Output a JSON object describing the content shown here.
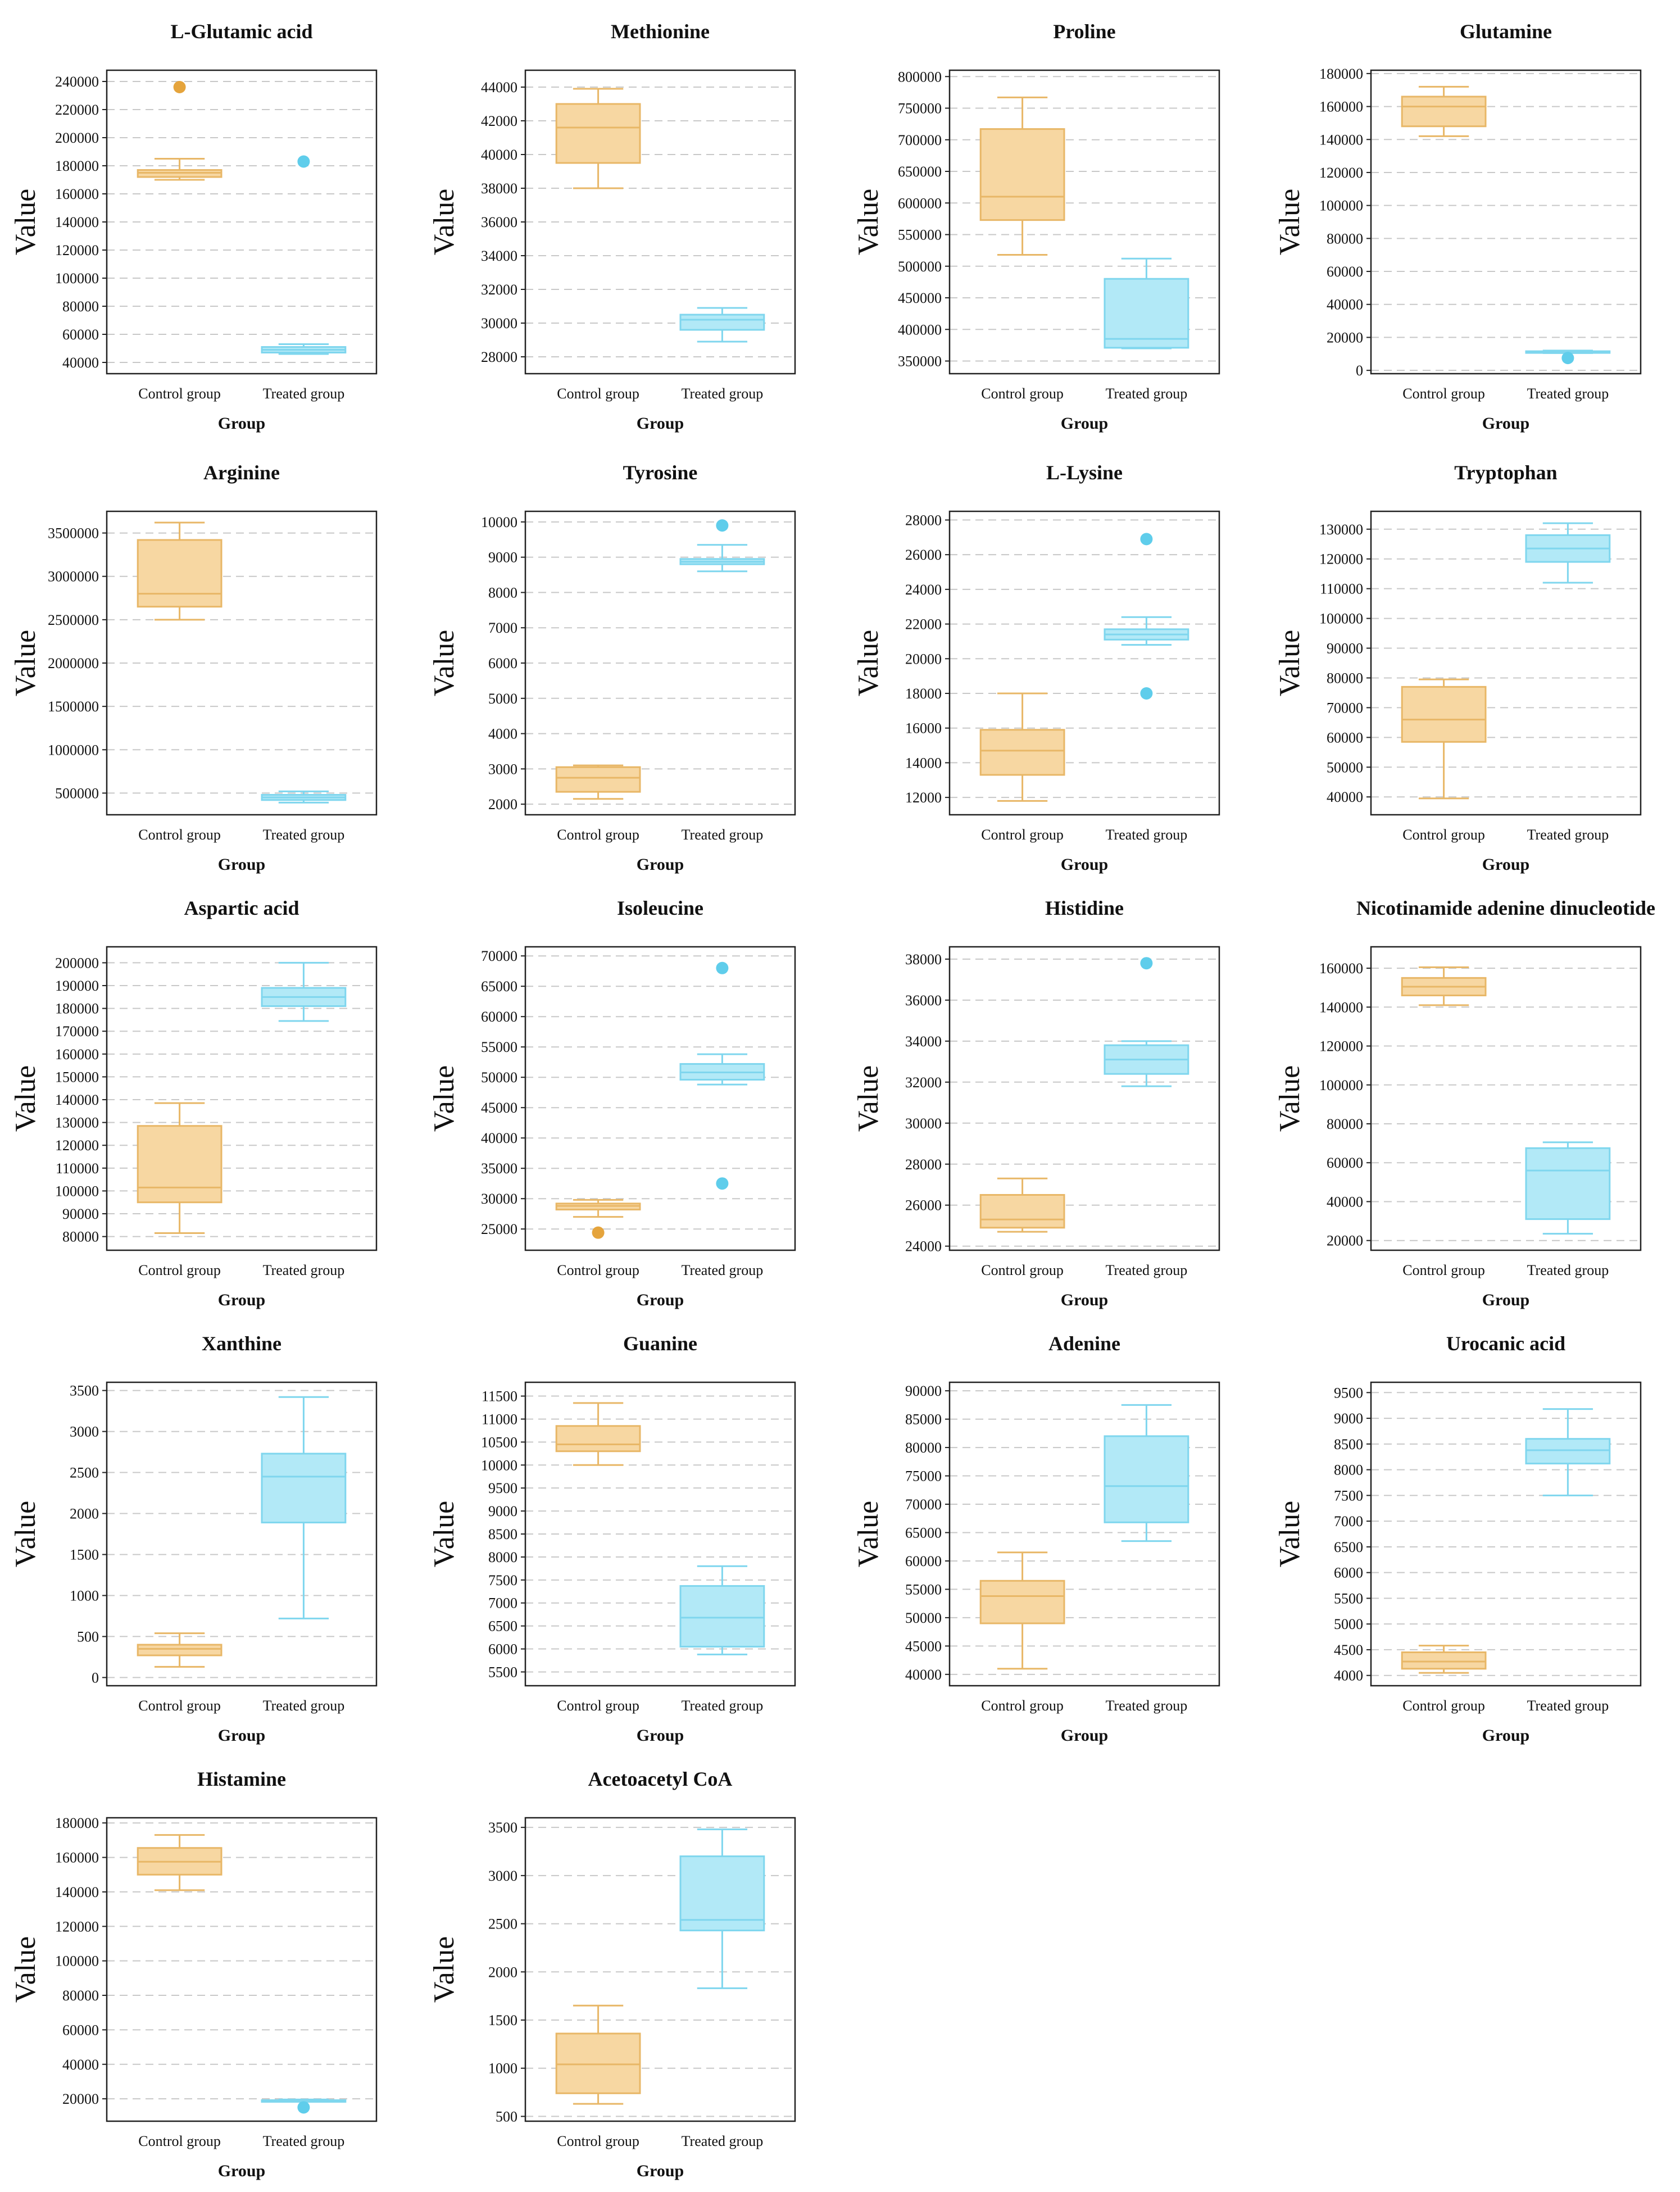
{
  "figure": {
    "colors": {
      "control_fill": "#f7d7a2",
      "control_edge": "#e8b767",
      "control_outlier": "#e5a43c",
      "treated_fill": "#b2e9f7",
      "treated_edge": "#7fd6ee",
      "treated_outlier": "#5fcdeb",
      "grid": "#c8c8c8",
      "frame": "#222222"
    }
  },
  "chart_data": [
    {
      "type": "box",
      "title": "L-Glutamic acid",
      "xlabel": "Group",
      "ylabel": "Value",
      "categories": [
        "Control group",
        "Treated group"
      ],
      "ylim": [
        32000,
        248000
      ],
      "yticks": [
        40000,
        60000,
        80000,
        100000,
        120000,
        140000,
        160000,
        180000,
        200000,
        220000,
        240000
      ],
      "ytick_labels": [
        "40000",
        "60000",
        "80000",
        "100000",
        "120000",
        "140000",
        "160000",
        "180000",
        "200000",
        "220000",
        "240000"
      ],
      "boxes": [
        {
          "whisker_low": 170000,
          "q1": 172000,
          "median": 175000,
          "q3": 177000,
          "whisker_high": 185000,
          "outliers": [
            236000
          ]
        },
        {
          "whisker_low": 46000,
          "q1": 47000,
          "median": 49000,
          "q3": 51000,
          "whisker_high": 53000,
          "outliers": [
            183000
          ]
        }
      ]
    },
    {
      "type": "box",
      "title": "Methionine",
      "xlabel": "Group",
      "ylabel": "Value",
      "categories": [
        "Control group",
        "Treated group"
      ],
      "ylim": [
        27000,
        45000
      ],
      "yticks": [
        28000,
        30000,
        32000,
        34000,
        36000,
        38000,
        40000,
        42000,
        44000
      ],
      "ytick_labels": [
        "28000",
        "30000",
        "32000",
        "34000",
        "36000",
        "38000",
        "40000",
        "42000",
        "44000"
      ],
      "boxes": [
        {
          "whisker_low": 38000,
          "q1": 39500,
          "median": 41600,
          "q3": 43000,
          "whisker_high": 43900,
          "outliers": []
        },
        {
          "whisker_low": 28900,
          "q1": 29600,
          "median": 30200,
          "q3": 30500,
          "whisker_high": 30900,
          "outliers": []
        }
      ]
    },
    {
      "type": "box",
      "title": "Proline",
      "xlabel": "Group",
      "ylabel": "Value",
      "categories": [
        "Control group",
        "Treated group"
      ],
      "ylim": [
        330000,
        810000
      ],
      "yticks": [
        350000,
        400000,
        450000,
        500000,
        550000,
        600000,
        650000,
        700000,
        750000,
        800000
      ],
      "ytick_labels": [
        "350000",
        "400000",
        "450000",
        "500000",
        "550000",
        "600000",
        "650000",
        "700000",
        "750000",
        "800000"
      ],
      "boxes": [
        {
          "whisker_low": 518000,
          "q1": 573000,
          "median": 610000,
          "q3": 717000,
          "whisker_high": 767000,
          "outliers": []
        },
        {
          "whisker_low": 370000,
          "q1": 371000,
          "median": 385000,
          "q3": 480000,
          "whisker_high": 512000,
          "outliers": []
        }
      ]
    },
    {
      "type": "box",
      "title": "Glutamine",
      "xlabel": "Group",
      "ylabel": "Value",
      "categories": [
        "Control group",
        "Treated group"
      ],
      "ylim": [
        -2000,
        182000
      ],
      "yticks": [
        0,
        20000,
        40000,
        60000,
        80000,
        100000,
        120000,
        140000,
        160000,
        180000
      ],
      "ytick_labels": [
        "0",
        "20000",
        "40000",
        "60000",
        "80000",
        "100000",
        "120000",
        "140000",
        "160000",
        "180000"
      ],
      "boxes": [
        {
          "whisker_low": 142000,
          "q1": 148000,
          "median": 160000,
          "q3": 166000,
          "whisker_high": 172000,
          "outliers": []
        },
        {
          "whisker_low": 10500,
          "q1": 10800,
          "median": 11200,
          "q3": 11600,
          "whisker_high": 12000,
          "outliers": [
            7500
          ]
        }
      ]
    },
    {
      "type": "box",
      "title": "Arginine",
      "xlabel": "Group",
      "ylabel": "Value",
      "categories": [
        "Control group",
        "Treated group"
      ],
      "ylim": [
        250000,
        3750000
      ],
      "yticks": [
        500000,
        1000000,
        1500000,
        2000000,
        2500000,
        3000000,
        3500000
      ],
      "ytick_labels": [
        "500000",
        "1000000",
        "1500000",
        "2000000",
        "2500000",
        "3000000",
        "3500000"
      ],
      "boxes": [
        {
          "whisker_low": 2500000,
          "q1": 2650000,
          "median": 2800000,
          "q3": 3420000,
          "whisker_high": 3620000,
          "outliers": []
        },
        {
          "whisker_low": 390000,
          "q1": 420000,
          "median": 450000,
          "q3": 480000,
          "whisker_high": 520000,
          "outliers": []
        }
      ]
    },
    {
      "type": "box",
      "title": "Tyrosine",
      "xlabel": "Group",
      "ylabel": "Value",
      "categories": [
        "Control group",
        "Treated group"
      ],
      "ylim": [
        1700,
        10300
      ],
      "yticks": [
        2000,
        3000,
        4000,
        5000,
        6000,
        7000,
        8000,
        9000,
        10000
      ],
      "ytick_labels": [
        "2000",
        "3000",
        "4000",
        "5000",
        "6000",
        "7000",
        "8000",
        "9000",
        "10000"
      ],
      "boxes": [
        {
          "whisker_low": 2150,
          "q1": 2350,
          "median": 2750,
          "q3": 3050,
          "whisker_high": 3100,
          "outliers": []
        },
        {
          "whisker_low": 8600,
          "q1": 8800,
          "median": 8870,
          "q3": 8950,
          "whisker_high": 9350,
          "outliers": [
            9900
          ]
        }
      ]
    },
    {
      "type": "box",
      "title": "L-Lysine",
      "xlabel": "Group",
      "ylabel": "Value",
      "categories": [
        "Control group",
        "Treated group"
      ],
      "ylim": [
        11000,
        28500
      ],
      "yticks": [
        12000,
        14000,
        16000,
        18000,
        20000,
        22000,
        24000,
        26000,
        28000
      ],
      "ytick_labels": [
        "12000",
        "14000",
        "16000",
        "18000",
        "20000",
        "22000",
        "24000",
        "26000",
        "28000"
      ],
      "boxes": [
        {
          "whisker_low": 11800,
          "q1": 13300,
          "median": 14700,
          "q3": 15900,
          "whisker_high": 18000,
          "outliers": []
        },
        {
          "whisker_low": 20800,
          "q1": 21100,
          "median": 21400,
          "q3": 21700,
          "whisker_high": 22400,
          "outliers": [
            26900,
            18000
          ]
        }
      ]
    },
    {
      "type": "box",
      "title": "Tryptophan",
      "xlabel": "Group",
      "ylabel": "Value",
      "categories": [
        "Control group",
        "Treated group"
      ],
      "ylim": [
        34000,
        136000
      ],
      "yticks": [
        40000,
        50000,
        60000,
        70000,
        80000,
        90000,
        100000,
        110000,
        120000,
        130000
      ],
      "ytick_labels": [
        "40000",
        "50000",
        "60000",
        "70000",
        "80000",
        "90000",
        "100000",
        "110000",
        "120000",
        "130000"
      ],
      "boxes": [
        {
          "whisker_low": 39500,
          "q1": 58500,
          "median": 66000,
          "q3": 77000,
          "whisker_high": 79500,
          "outliers": []
        },
        {
          "whisker_low": 112000,
          "q1": 119000,
          "median": 123500,
          "q3": 128000,
          "whisker_high": 132000,
          "outliers": []
        }
      ]
    },
    {
      "type": "box",
      "title": "Aspartic acid",
      "xlabel": "Group",
      "ylabel": "Value",
      "categories": [
        "Control group",
        "Treated group"
      ],
      "ylim": [
        74000,
        207000
      ],
      "yticks": [
        80000,
        90000,
        100000,
        110000,
        120000,
        130000,
        140000,
        150000,
        160000,
        170000,
        180000,
        190000,
        200000
      ],
      "ytick_labels": [
        "80000",
        "90000",
        "100000",
        "110000",
        "120000",
        "130000",
        "140000",
        "150000",
        "160000",
        "170000",
        "180000",
        "190000",
        "200000"
      ],
      "boxes": [
        {
          "whisker_low": 81500,
          "q1": 95000,
          "median": 101500,
          "q3": 128500,
          "whisker_high": 138500,
          "outliers": []
        },
        {
          "whisker_low": 174500,
          "q1": 181000,
          "median": 185000,
          "q3": 189000,
          "whisker_high": 200000,
          "outliers": []
        }
      ]
    },
    {
      "type": "box",
      "title": "Isoleucine",
      "xlabel": "Group",
      "ylabel": "Value",
      "categories": [
        "Control group",
        "Treated group"
      ],
      "ylim": [
        21500,
        71500
      ],
      "yticks": [
        25000,
        30000,
        35000,
        40000,
        45000,
        50000,
        55000,
        60000,
        65000,
        70000
      ],
      "ytick_labels": [
        "25000",
        "30000",
        "35000",
        "40000",
        "45000",
        "50000",
        "55000",
        "60000",
        "65000",
        "70000"
      ],
      "boxes": [
        {
          "whisker_low": 27000,
          "q1": 28200,
          "median": 28800,
          "q3": 29200,
          "whisker_high": 29800,
          "outliers": [
            24400
          ]
        },
        {
          "whisker_low": 48800,
          "q1": 49600,
          "median": 50800,
          "q3": 52200,
          "whisker_high": 53800,
          "outliers": [
            68000,
            32500
          ]
        }
      ]
    },
    {
      "type": "box",
      "title": "Histidine",
      "xlabel": "Group",
      "ylabel": "Value",
      "categories": [
        "Control group",
        "Treated group"
      ],
      "ylim": [
        23800,
        38600
      ],
      "yticks": [
        24000,
        26000,
        28000,
        30000,
        32000,
        34000,
        36000,
        38000
      ],
      "ytick_labels": [
        "24000",
        "26000",
        "28000",
        "30000",
        "32000",
        "34000",
        "36000",
        "38000"
      ],
      "boxes": [
        {
          "whisker_low": 24700,
          "q1": 24900,
          "median": 25300,
          "q3": 26500,
          "whisker_high": 27300,
          "outliers": []
        },
        {
          "whisker_low": 31800,
          "q1": 32400,
          "median": 33100,
          "q3": 33800,
          "whisker_high": 34000,
          "outliers": [
            37800
          ]
        }
      ]
    },
    {
      "type": "box",
      "title": "Nicotinamide adenine dinucleotide",
      "xlabel": "Group",
      "ylabel": "Value",
      "categories": [
        "Control group",
        "Treated group"
      ],
      "ylim": [
        15000,
        171000
      ],
      "yticks": [
        20000,
        40000,
        60000,
        80000,
        100000,
        120000,
        140000,
        160000
      ],
      "ytick_labels": [
        "20000",
        "40000",
        "60000",
        "80000",
        "100000",
        "120000",
        "140000",
        "160000"
      ],
      "boxes": [
        {
          "whisker_low": 141000,
          "q1": 146000,
          "median": 150500,
          "q3": 155000,
          "whisker_high": 160500,
          "outliers": []
        },
        {
          "whisker_low": 23500,
          "q1": 31000,
          "median": 56000,
          "q3": 67500,
          "whisker_high": 70500,
          "outliers": []
        }
      ]
    },
    {
      "type": "box",
      "title": "Xanthine",
      "xlabel": "Group",
      "ylabel": "Value",
      "categories": [
        "Control group",
        "Treated group"
      ],
      "ylim": [
        -100,
        3600
      ],
      "yticks": [
        0,
        500,
        1000,
        1500,
        2000,
        2500,
        3000,
        3500
      ],
      "ytick_labels": [
        "0",
        "500",
        "1000",
        "1500",
        "2000",
        "2500",
        "3000",
        "3500"
      ],
      "boxes": [
        {
          "whisker_low": 130,
          "q1": 270,
          "median": 350,
          "q3": 400,
          "whisker_high": 540,
          "outliers": []
        },
        {
          "whisker_low": 720,
          "q1": 1890,
          "median": 2450,
          "q3": 2730,
          "whisker_high": 3420,
          "outliers": []
        }
      ]
    },
    {
      "type": "box",
      "title": "Guanine",
      "xlabel": "Group",
      "ylabel": "Value",
      "categories": [
        "Control group",
        "Treated group"
      ],
      "ylim": [
        5200,
        11800
      ],
      "yticks": [
        5500,
        6000,
        6500,
        7000,
        7500,
        8000,
        8500,
        9000,
        9500,
        10000,
        10500,
        11000,
        11500
      ],
      "ytick_labels": [
        "5500",
        "6000",
        "6500",
        "7000",
        "7500",
        "8000",
        "8500",
        "9000",
        "9500",
        "10000",
        "10500",
        "11000",
        "11500"
      ],
      "boxes": [
        {
          "whisker_low": 10000,
          "q1": 10300,
          "median": 10450,
          "q3": 10850,
          "whisker_high": 11350,
          "outliers": []
        },
        {
          "whisker_low": 5880,
          "q1": 6050,
          "median": 6680,
          "q3": 7370,
          "whisker_high": 7800,
          "outliers": []
        }
      ]
    },
    {
      "type": "box",
      "title": "Adenine",
      "xlabel": "Group",
      "ylabel": "Value",
      "categories": [
        "Control group",
        "Treated group"
      ],
      "ylim": [
        38000,
        91500
      ],
      "yticks": [
        40000,
        45000,
        50000,
        55000,
        60000,
        65000,
        70000,
        75000,
        80000,
        85000,
        90000
      ],
      "ytick_labels": [
        "40000",
        "45000",
        "50000",
        "55000",
        "60000",
        "65000",
        "70000",
        "75000",
        "80000",
        "85000",
        "90000"
      ],
      "boxes": [
        {
          "whisker_low": 41000,
          "q1": 49000,
          "median": 53800,
          "q3": 56500,
          "whisker_high": 61500,
          "outliers": []
        },
        {
          "whisker_low": 63500,
          "q1": 66800,
          "median": 73200,
          "q3": 82000,
          "whisker_high": 87500,
          "outliers": []
        }
      ]
    },
    {
      "type": "box",
      "title": "Urocanic acid",
      "xlabel": "Group",
      "ylabel": "Value",
      "categories": [
        "Control group",
        "Treated group"
      ],
      "ylim": [
        3800,
        9700
      ],
      "yticks": [
        4000,
        4500,
        5000,
        5500,
        6000,
        6500,
        7000,
        7500,
        8000,
        8500,
        9000,
        9500
      ],
      "ytick_labels": [
        "4000",
        "4500",
        "5000",
        "5500",
        "6000",
        "6500",
        "7000",
        "7500",
        "8000",
        "8500",
        "9000",
        "9500"
      ],
      "boxes": [
        {
          "whisker_low": 4050,
          "q1": 4130,
          "median": 4270,
          "q3": 4450,
          "whisker_high": 4580,
          "outliers": []
        },
        {
          "whisker_low": 7500,
          "q1": 8120,
          "median": 8380,
          "q3": 8600,
          "whisker_high": 9180,
          "outliers": []
        }
      ]
    },
    {
      "type": "box",
      "title": "Histamine",
      "xlabel": "Group",
      "ylabel": "Value",
      "categories": [
        "Control group",
        "Treated group"
      ],
      "ylim": [
        7000,
        183000
      ],
      "yticks": [
        20000,
        40000,
        60000,
        80000,
        100000,
        120000,
        140000,
        160000,
        180000
      ],
      "ytick_labels": [
        "20000",
        "40000",
        "60000",
        "80000",
        "100000",
        "120000",
        "140000",
        "160000",
        "180000"
      ],
      "boxes": [
        {
          "whisker_low": 141000,
          "q1": 150000,
          "median": 157500,
          "q3": 165500,
          "whisker_high": 173000,
          "outliers": []
        },
        {
          "whisker_low": 18500,
          "q1": 18800,
          "median": 19000,
          "q3": 19200,
          "whisker_high": 19600,
          "outliers": [
            15000
          ]
        }
      ]
    },
    {
      "type": "box",
      "title": "Acetoacetyl CoA",
      "xlabel": "Group",
      "ylabel": "Value",
      "categories": [
        "Control group",
        "Treated group"
      ],
      "ylim": [
        450,
        3600
      ],
      "yticks": [
        500,
        1000,
        1500,
        2000,
        2500,
        3000,
        3500
      ],
      "ytick_labels": [
        "500",
        "1000",
        "1500",
        "2000",
        "2500",
        "3000",
        "3500"
      ],
      "boxes": [
        {
          "whisker_low": 630,
          "q1": 740,
          "median": 1040,
          "q3": 1360,
          "whisker_high": 1650,
          "outliers": []
        },
        {
          "whisker_low": 1830,
          "q1": 2430,
          "median": 2540,
          "q3": 3200,
          "whisker_high": 3480,
          "outliers": []
        }
      ]
    }
  ]
}
